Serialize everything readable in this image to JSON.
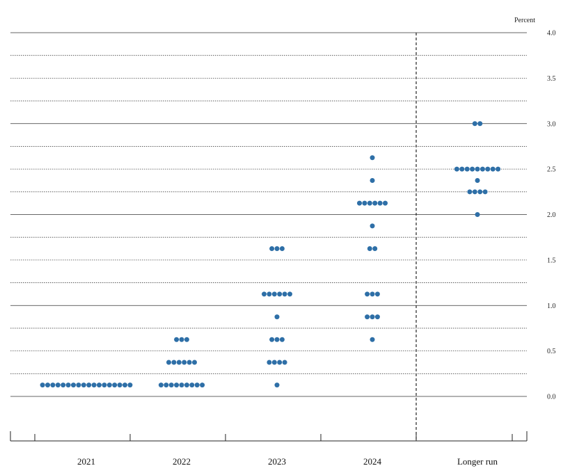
{
  "chart_data": {
    "type": "scatter",
    "title": "",
    "ylabel": "Percent",
    "ylim": [
      -0.5,
      4.0
    ],
    "yticks": [
      "4.0",
      "3.5",
      "3.0",
      "2.5",
      "2.0",
      "1.5",
      "1.0",
      "0.5",
      "0.0"
    ],
    "categories": [
      "2021",
      "2022",
      "2023",
      "2024",
      "Longer run"
    ],
    "dot_color": "#2e6fa7",
    "series": [
      {
        "category": "2021",
        "points": [
          {
            "y": 0.125,
            "count": 18
          }
        ]
      },
      {
        "category": "2022",
        "points": [
          {
            "y": 0.625,
            "count": 3
          },
          {
            "y": 0.375,
            "count": 6
          },
          {
            "y": 0.125,
            "count": 9
          }
        ]
      },
      {
        "category": "2023",
        "points": [
          {
            "y": 1.625,
            "count": 3
          },
          {
            "y": 1.125,
            "count": 6
          },
          {
            "y": 0.875,
            "count": 1
          },
          {
            "y": 0.625,
            "count": 3
          },
          {
            "y": 0.375,
            "count": 4
          },
          {
            "y": 0.125,
            "count": 1
          }
        ]
      },
      {
        "category": "2024",
        "points": [
          {
            "y": 2.625,
            "count": 1
          },
          {
            "y": 2.375,
            "count": 1
          },
          {
            "y": 2.125,
            "count": 6
          },
          {
            "y": 1.875,
            "count": 1
          },
          {
            "y": 1.625,
            "count": 2
          },
          {
            "y": 1.125,
            "count": 3
          },
          {
            "y": 0.875,
            "count": 3
          },
          {
            "y": 0.625,
            "count": 1
          }
        ]
      },
      {
        "category": "Longer run",
        "points": [
          {
            "y": 3.0,
            "count": 2
          },
          {
            "y": 2.5,
            "count": 9
          },
          {
            "y": 2.375,
            "count": 1
          },
          {
            "y": 2.25,
            "count": 4
          },
          {
            "y": 2.0,
            "count": 1
          }
        ]
      }
    ]
  }
}
